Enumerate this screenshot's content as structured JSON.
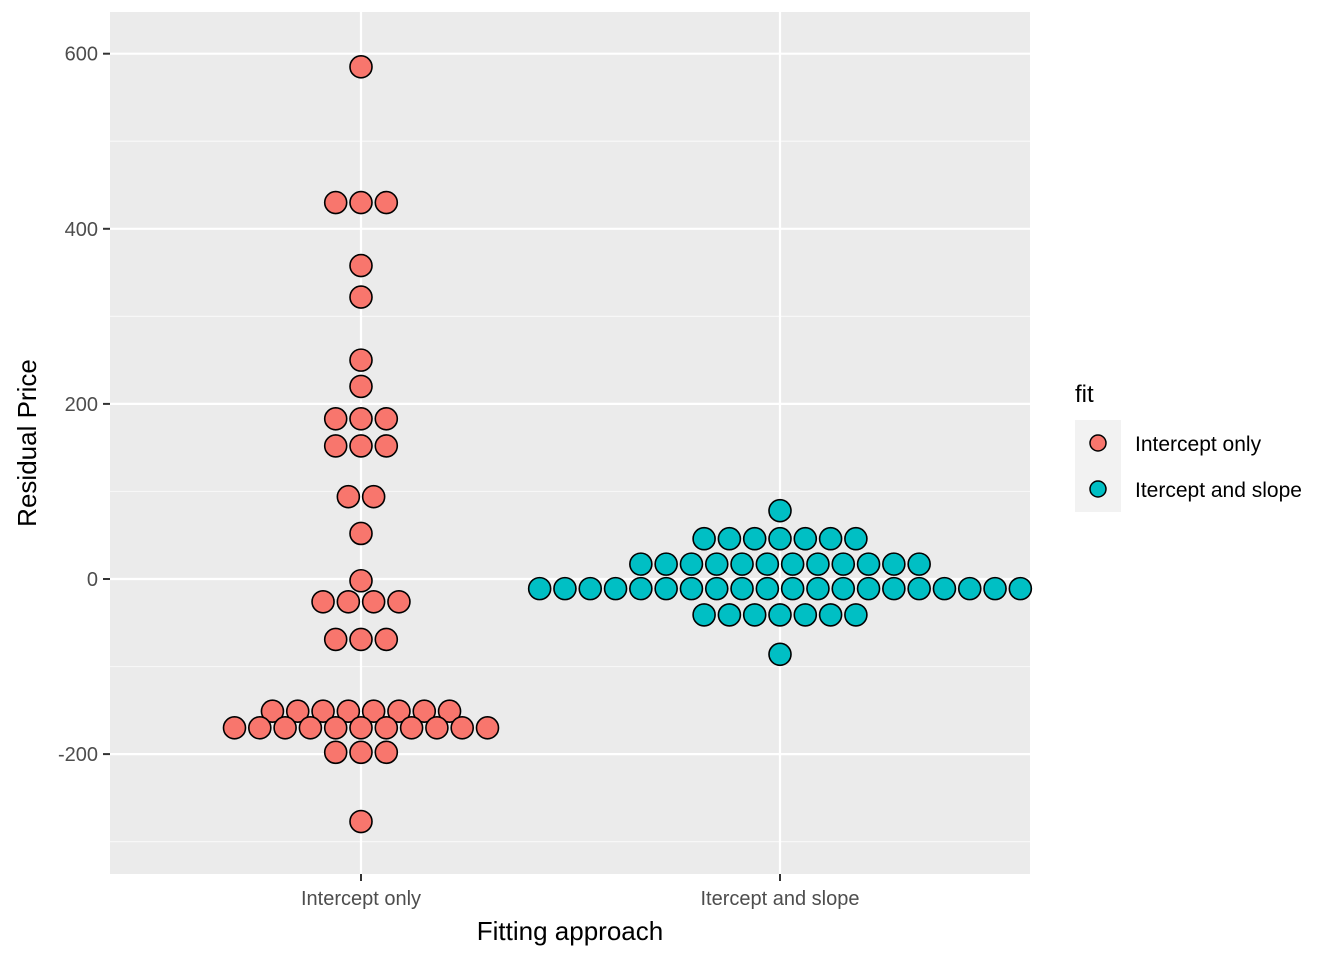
{
  "chart_data": {
    "type": "scatter",
    "subtype": "dotplot",
    "xlabel": "Fitting approach",
    "ylabel": "Residual Price",
    "categories": [
      "Intercept only",
      "Itercept and slope"
    ],
    "ylim": [
      -335,
      645
    ],
    "yticks": [
      -200,
      0,
      200,
      400,
      600
    ],
    "grid": true,
    "legend": {
      "title": "fit",
      "position": "right"
    },
    "series": [
      {
        "name": "Intercept only",
        "color": "#F8766D",
        "category": "Intercept only",
        "bins": [
          {
            "y": 585,
            "count": 1
          },
          {
            "y": 430,
            "count": 3
          },
          {
            "y": 358,
            "count": 1
          },
          {
            "y": 322,
            "count": 1
          },
          {
            "y": 250,
            "count": 1
          },
          {
            "y": 220,
            "count": 1
          },
          {
            "y": 183,
            "count": 3
          },
          {
            "y": 152,
            "count": 3
          },
          {
            "y": 94,
            "count": 2
          },
          {
            "y": 52,
            "count": 1
          },
          {
            "y": -2,
            "count": 1
          },
          {
            "y": -26,
            "count": 4
          },
          {
            "y": -69,
            "count": 3
          },
          {
            "y": -151,
            "count": 8
          },
          {
            "y": -170,
            "count": 11
          },
          {
            "y": -198,
            "count": 3
          },
          {
            "y": -277,
            "count": 1
          }
        ]
      },
      {
        "name": "Itercept and slope",
        "color": "#00BFC4",
        "category": "Itercept and slope",
        "bins": [
          {
            "y": 78,
            "count": 1
          },
          {
            "y": 46,
            "count": 7
          },
          {
            "y": 17,
            "count": 12
          },
          {
            "y": -11,
            "count": 20
          },
          {
            "y": -41,
            "count": 7
          },
          {
            "y": -86,
            "count": 1
          }
        ]
      }
    ]
  }
}
